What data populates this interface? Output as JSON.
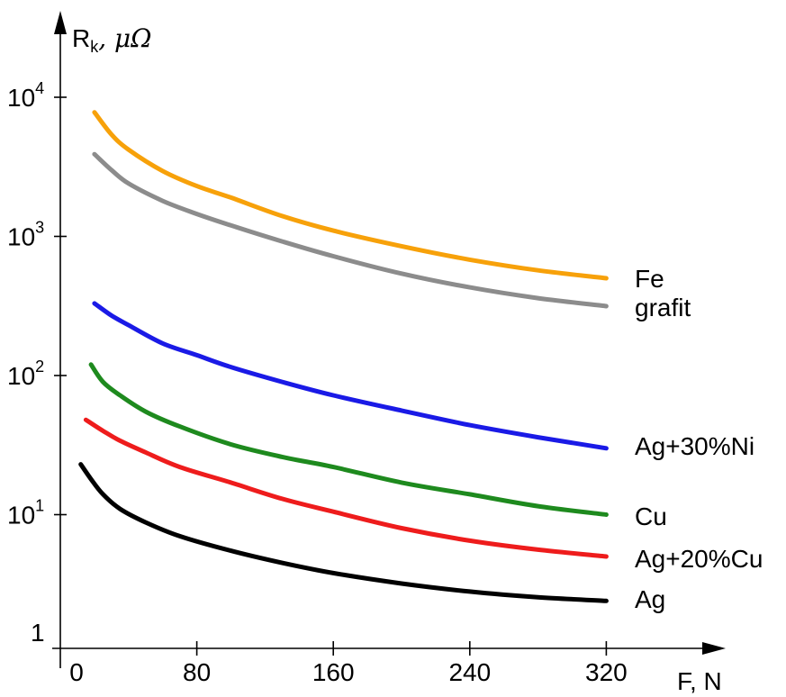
{
  "chart_data": {
    "type": "line",
    "title": "",
    "ylabel": "R",
    "ylabel_sub": "k",
    "ylabel_unit": ", μΩ",
    "xlabel": "F, N",
    "y_scale": "log",
    "ylim": [
      1,
      30000
    ],
    "xlim": [
      0,
      380
    ],
    "grid": false,
    "x_ticks": [
      {
        "value": 0,
        "label": "0"
      },
      {
        "value": 80,
        "label": "80"
      },
      {
        "value": 160,
        "label": "160"
      },
      {
        "value": 240,
        "label": "240"
      },
      {
        "value": 320,
        "label": "320"
      }
    ],
    "y_ticks": [
      {
        "value": 1,
        "base": "1",
        "exp": ""
      },
      {
        "value": 10,
        "base": "10",
        "exp": "1"
      },
      {
        "value": 100,
        "base": "10",
        "exp": "2"
      },
      {
        "value": 1000,
        "base": "10",
        "exp": "3"
      },
      {
        "value": 10000,
        "base": "10",
        "exp": "4"
      }
    ],
    "series": [
      {
        "name": "Fe",
        "color": "#f7a10a",
        "x": [
          20,
          30,
          40,
          60,
          80,
          100,
          130,
          160,
          200,
          240,
          280,
          320
        ],
        "y": [
          7800,
          5400,
          4200,
          2950,
          2300,
          1900,
          1400,
          1100,
          850,
          680,
          570,
          500
        ]
      },
      {
        "name": "grafit",
        "color": "#8c8c8c",
        "x": [
          20,
          30,
          40,
          60,
          80,
          100,
          130,
          160,
          200,
          240,
          280,
          320
        ],
        "y": [
          3900,
          3000,
          2400,
          1800,
          1450,
          1200,
          920,
          720,
          540,
          430,
          360,
          315
        ]
      },
      {
        "name": "Ag+30%Ni",
        "color": "#1a1ae6",
        "x": [
          20,
          30,
          40,
          60,
          80,
          100,
          130,
          160,
          200,
          240,
          280,
          320
        ],
        "y": [
          330,
          270,
          230,
          170,
          140,
          115,
          90,
          72,
          56,
          44,
          36,
          30
        ]
      },
      {
        "name": "Cu",
        "color": "#1e8a1e",
        "x": [
          18,
          25,
          35,
          50,
          70,
          100,
          130,
          160,
          200,
          240,
          280,
          320
        ],
        "y": [
          120,
          90,
          72,
          55,
          43,
          32,
          26,
          22,
          17,
          14,
          11.5,
          10
        ]
      },
      {
        "name": "Ag+20%Cu",
        "color": "#ee1c1c",
        "x": [
          15,
          25,
          35,
          50,
          70,
          100,
          130,
          160,
          200,
          240,
          280,
          320
        ],
        "y": [
          48,
          40,
          34,
          28,
          22,
          17,
          13,
          10.5,
          8,
          6.5,
          5.6,
          5
        ]
      },
      {
        "name": "Ag",
        "color": "#000000",
        "x": [
          12,
          18,
          25,
          35,
          50,
          70,
          100,
          130,
          160,
          200,
          240,
          280,
          320
        ],
        "y": [
          23,
          18,
          14,
          11,
          8.8,
          7,
          5.5,
          4.5,
          3.8,
          3.2,
          2.8,
          2.55,
          2.4
        ]
      }
    ]
  }
}
